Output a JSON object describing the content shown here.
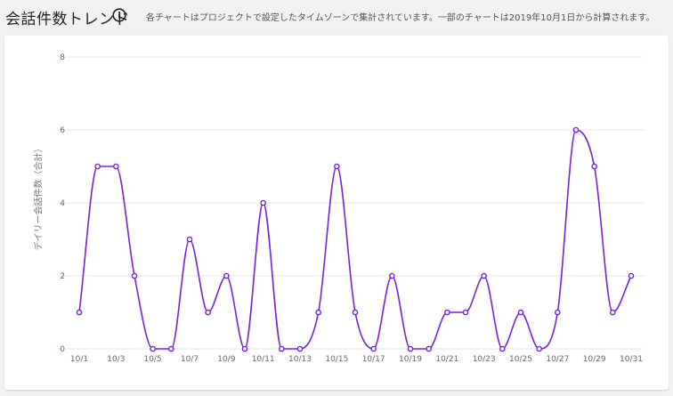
{
  "header": {
    "title": "会話件数トレンド",
    "info_icon": "info-circle-icon",
    "description": "各チャートはプロジェクトで設定したタイムゾーンで集計されています。一部のチャートは2019年10月1日から計算されます。"
  },
  "colors": {
    "line": "#7a1ee0",
    "grid": "#e6e6e6",
    "axis_text": "#666666",
    "background": "#f1f1f1",
    "card": "#ffffff"
  },
  "chart_data": {
    "type": "line",
    "ylabel": "デイリー会話件数（合計）",
    "xlabel": "",
    "ylim": [
      0,
      8
    ],
    "yticks": [
      0,
      2,
      4,
      6,
      8
    ],
    "grid": true,
    "smooth": true,
    "x": [
      "10/1",
      "10/2",
      "10/3",
      "10/4",
      "10/5",
      "10/6",
      "10/7",
      "10/8",
      "10/9",
      "10/10",
      "10/11",
      "10/12",
      "10/13",
      "10/14",
      "10/15",
      "10/16",
      "10/17",
      "10/18",
      "10/19",
      "10/20",
      "10/21",
      "10/22",
      "10/23",
      "10/24",
      "10/25",
      "10/26",
      "10/27",
      "10/28",
      "10/29",
      "10/30",
      "10/31"
    ],
    "xtick_labels": [
      "10/1",
      "10/3",
      "10/5",
      "10/7",
      "10/9",
      "10/11",
      "10/13",
      "10/15",
      "10/17",
      "10/19",
      "10/21",
      "10/23",
      "10/25",
      "10/27",
      "10/29",
      "10/31"
    ],
    "series": [
      {
        "values": [
          1,
          5,
          5,
          2,
          0,
          0,
          3,
          1,
          2,
          0,
          4,
          0,
          0,
          1,
          5,
          1,
          0,
          2,
          0,
          0,
          1,
          1,
          2,
          0,
          1,
          0,
          1,
          6,
          5,
          1,
          2
        ]
      }
    ]
  }
}
